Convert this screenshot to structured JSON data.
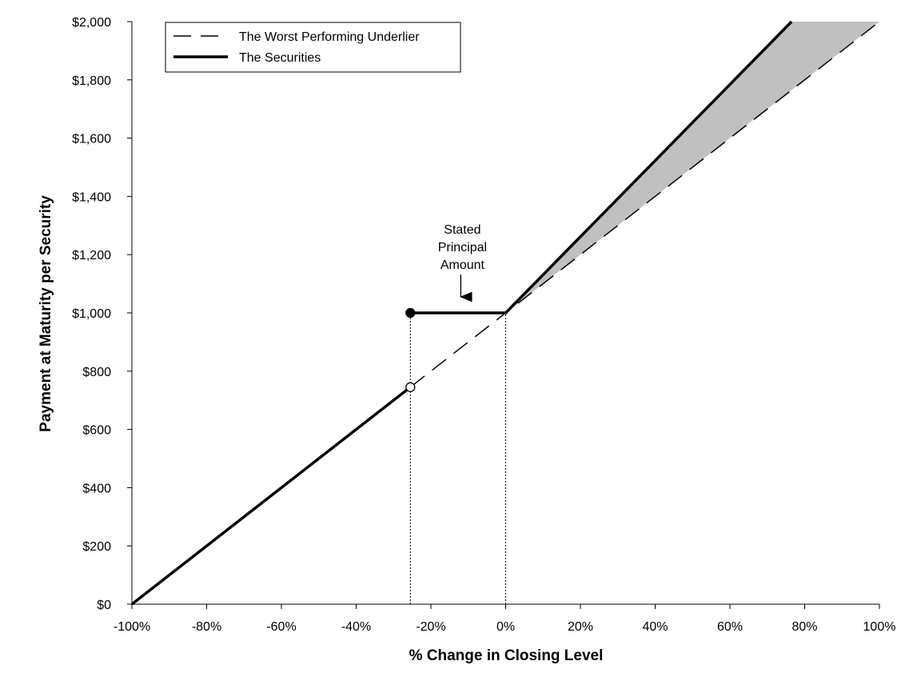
{
  "chart_data": {
    "type": "line",
    "xlabel": "% Change in Closing Level",
    "ylabel": "Payment at Maturity per Security",
    "xlim": [
      -100,
      100
    ],
    "ylim": [
      0,
      2000
    ],
    "x_ticks": [
      -100,
      -80,
      -60,
      -40,
      -20,
      0,
      20,
      40,
      60,
      80,
      100
    ],
    "x_tick_labels": [
      "-100%",
      "-80%",
      "-60%",
      "-40%",
      "-20%",
      "0%",
      "20%",
      "40%",
      "60%",
      "80%",
      "100%"
    ],
    "y_ticks": [
      0,
      200,
      400,
      600,
      800,
      1000,
      1200,
      1400,
      1600,
      1800,
      2000
    ],
    "y_tick_labels": [
      "$0",
      "$200",
      "$400",
      "$600",
      "$800",
      "$1,000",
      "$1,200",
      "$1,400",
      "$1,600",
      "$1,800",
      "$2,000"
    ],
    "grid": false,
    "legend_position": "top-left",
    "series": [
      {
        "name": "The Worst Performing Underlier",
        "style": "dashed",
        "points": [
          [
            -100,
            0
          ],
          [
            100,
            2000
          ]
        ]
      },
      {
        "name": "The Securities",
        "style": "solid-thick",
        "segments": [
          [
            [
              -100,
              0
            ],
            [
              -25.5,
              745
            ]
          ],
          [
            [
              -25.5,
              1000
            ],
            [
              0,
              1000
            ],
            [
              76.5,
              2000
            ]
          ]
        ]
      }
    ],
    "markers": [
      {
        "x": -25.5,
        "y": 1000,
        "fill": "filled"
      },
      {
        "x": -25.5,
        "y": 745,
        "fill": "open"
      }
    ],
    "reference_lines": [
      {
        "x": -25.5,
        "y_from": 0,
        "y_to": 1000,
        "style": "dotted"
      },
      {
        "x": 0,
        "y_from": 0,
        "y_to": 1000,
        "style": "dotted"
      }
    ],
    "shaded_region": {
      "color": "#c0c0c0",
      "polygon": [
        [
          0,
          1000
        ],
        [
          76.5,
          2000
        ],
        [
          100,
          2000
        ]
      ]
    },
    "annotations": [
      {
        "lines": [
          "Stated",
          "Principal",
          "Amount"
        ],
        "arrow_to": [
          -12,
          1000
        ]
      }
    ],
    "colors": {
      "line": "#000000",
      "shade": "#c0c0c0",
      "background": "#ffffff"
    }
  }
}
